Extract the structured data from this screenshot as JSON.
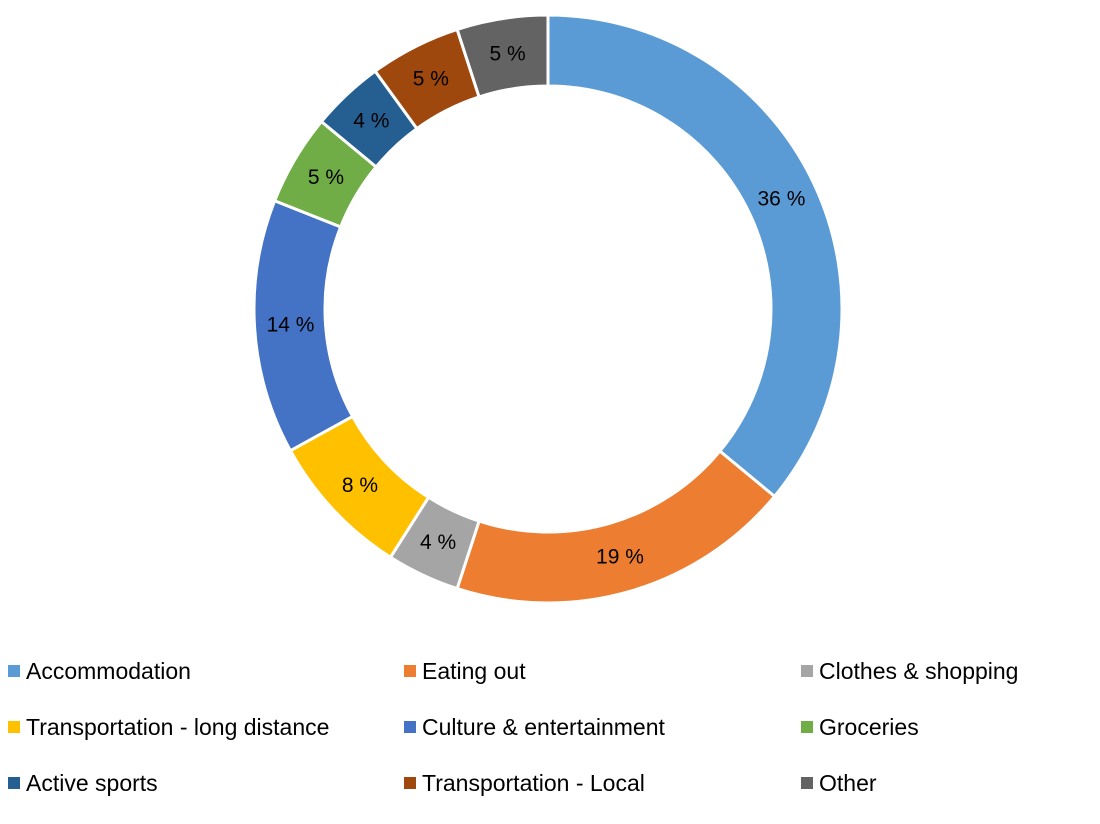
{
  "chart_data": {
    "type": "pie",
    "variant": "donut",
    "categories": [
      "Accommodation",
      "Eating out",
      "Clothes & shopping",
      "Transportation - long distance",
      "Culture & entertainment",
      "Groceries",
      "Active sports",
      "Transportation - Local",
      "Other"
    ],
    "values": [
      36,
      19,
      4,
      8,
      14,
      5,
      4,
      5,
      5
    ],
    "labels": [
      "36 %",
      "19 %",
      "4 %",
      "8 %",
      "14 %",
      "5 %",
      "4 %",
      "5 %",
      "5 %"
    ],
    "colors": [
      "#5B9BD5",
      "#ED7D31",
      "#A5A5A5",
      "#FFC000",
      "#4472C4",
      "#70AD47",
      "#255E91",
      "#9E480E",
      "#636363"
    ],
    "title": "",
    "legend_position": "bottom",
    "start_angle": "top, clockwise"
  }
}
